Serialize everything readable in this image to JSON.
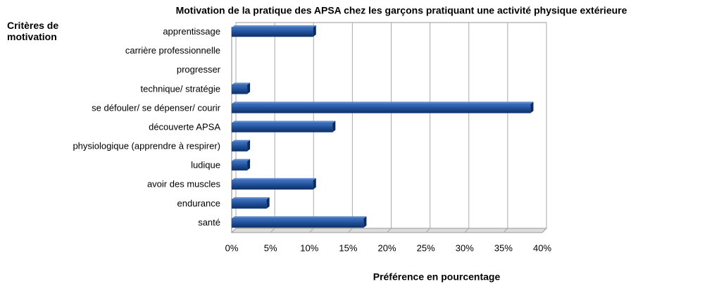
{
  "chart_data": {
    "type": "bar",
    "orientation": "horizontal",
    "title": "Motivation de la pratique des APSA chez les garçons pratiquant une activité physique extérieure",
    "y_axis_title": "Critères de motivation",
    "x_axis_title": "Préférence en pourcentage",
    "categories": [
      "apprentissage",
      "carrière professionnelle",
      "progresser",
      "technique/ stratégie",
      "se défouler/ se dépenser/ courir",
      "découverte APSA",
      "physiologique (apprendre à respirer)",
      "ludique",
      "avoir des muscles",
      "endurance",
      "santé"
    ],
    "values": [
      10.5,
      0,
      0,
      2,
      38.5,
      13,
      2,
      2,
      10.5,
      4.5,
      17
    ],
    "color": "#1f4e96",
    "xlim": [
      0,
      40
    ],
    "xticks": [
      {
        "value": 0,
        "label": "0%"
      },
      {
        "value": 5,
        "label": "5%"
      },
      {
        "value": 10,
        "label": "10%"
      },
      {
        "value": 15,
        "label": "15%"
      },
      {
        "value": 20,
        "label": "20%"
      },
      {
        "value": 25,
        "label": "25%"
      },
      {
        "value": 30,
        "label": "30%"
      },
      {
        "value": 35,
        "label": "35%"
      },
      {
        "value": 40,
        "label": "40%"
      }
    ],
    "grid": true
  }
}
